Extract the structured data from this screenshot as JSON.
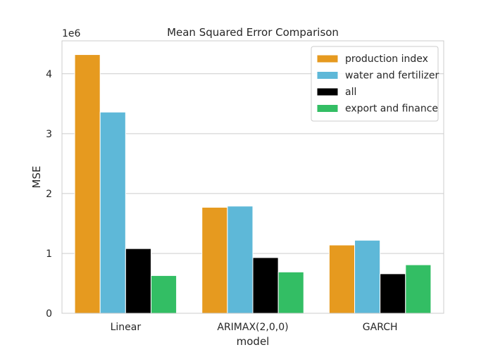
{
  "chart_data": {
    "type": "bar",
    "title": "Mean Squared Error Comparison",
    "xlabel": "model",
    "ylabel": "MSE",
    "y_scale_label": "1e6",
    "categories": [
      "Linear",
      "ARIMAX(2,0,0)",
      "GARCH"
    ],
    "ylim": [
      0,
      4.55
    ],
    "yticks": [
      0,
      1,
      2,
      3,
      4
    ],
    "grid": true,
    "legend_position": "top-right",
    "series": [
      {
        "name": "production index",
        "color": "#E69A1F",
        "values": [
          4.32,
          1.77,
          1.14
        ]
      },
      {
        "name": "water and fertilizer",
        "color": "#5EB8D8",
        "values": [
          3.36,
          1.79,
          1.22
        ]
      },
      {
        "name": "all",
        "color": "#000000",
        "values": [
          1.08,
          0.93,
          0.66
        ]
      },
      {
        "name": "export and finance",
        "color": "#33BE64",
        "values": [
          0.63,
          0.69,
          0.81
        ]
      }
    ]
  }
}
